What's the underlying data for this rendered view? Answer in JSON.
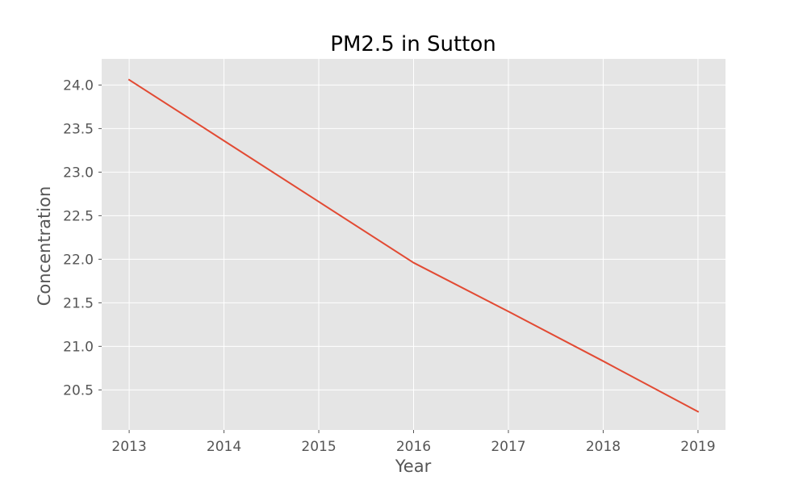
{
  "chart_data": {
    "type": "line",
    "title": "PM2.5 in Sutton",
    "xlabel": "Year",
    "ylabel": "Concentration",
    "x": [
      2013,
      2014,
      2015,
      2016,
      2017,
      2018,
      2019
    ],
    "series": [
      {
        "values": [
          24.06,
          23.36,
          22.66,
          21.96,
          21.4,
          20.83,
          20.25
        ],
        "color": "#E24A33"
      }
    ],
    "xlim": [
      2012.71,
      2019.29
    ],
    "ylim": [
      20.04,
      24.3
    ],
    "xticks": [
      2013,
      2014,
      2015,
      2016,
      2017,
      2018,
      2019
    ],
    "xtick_labels": [
      "2013",
      "2014",
      "2015",
      "2016",
      "2017",
      "2018",
      "2019"
    ],
    "yticks": [
      20.5,
      21.0,
      21.5,
      22.0,
      22.5,
      23.0,
      23.5,
      24.0
    ],
    "ytick_labels": [
      "20.5",
      "21.0",
      "21.5",
      "22.0",
      "22.5",
      "23.0",
      "23.5",
      "24.0"
    ],
    "grid": true,
    "style": {
      "plot_background": "#E5E5E5",
      "grid_color": "#FFFFFF",
      "line_color": "#E24A33"
    }
  }
}
